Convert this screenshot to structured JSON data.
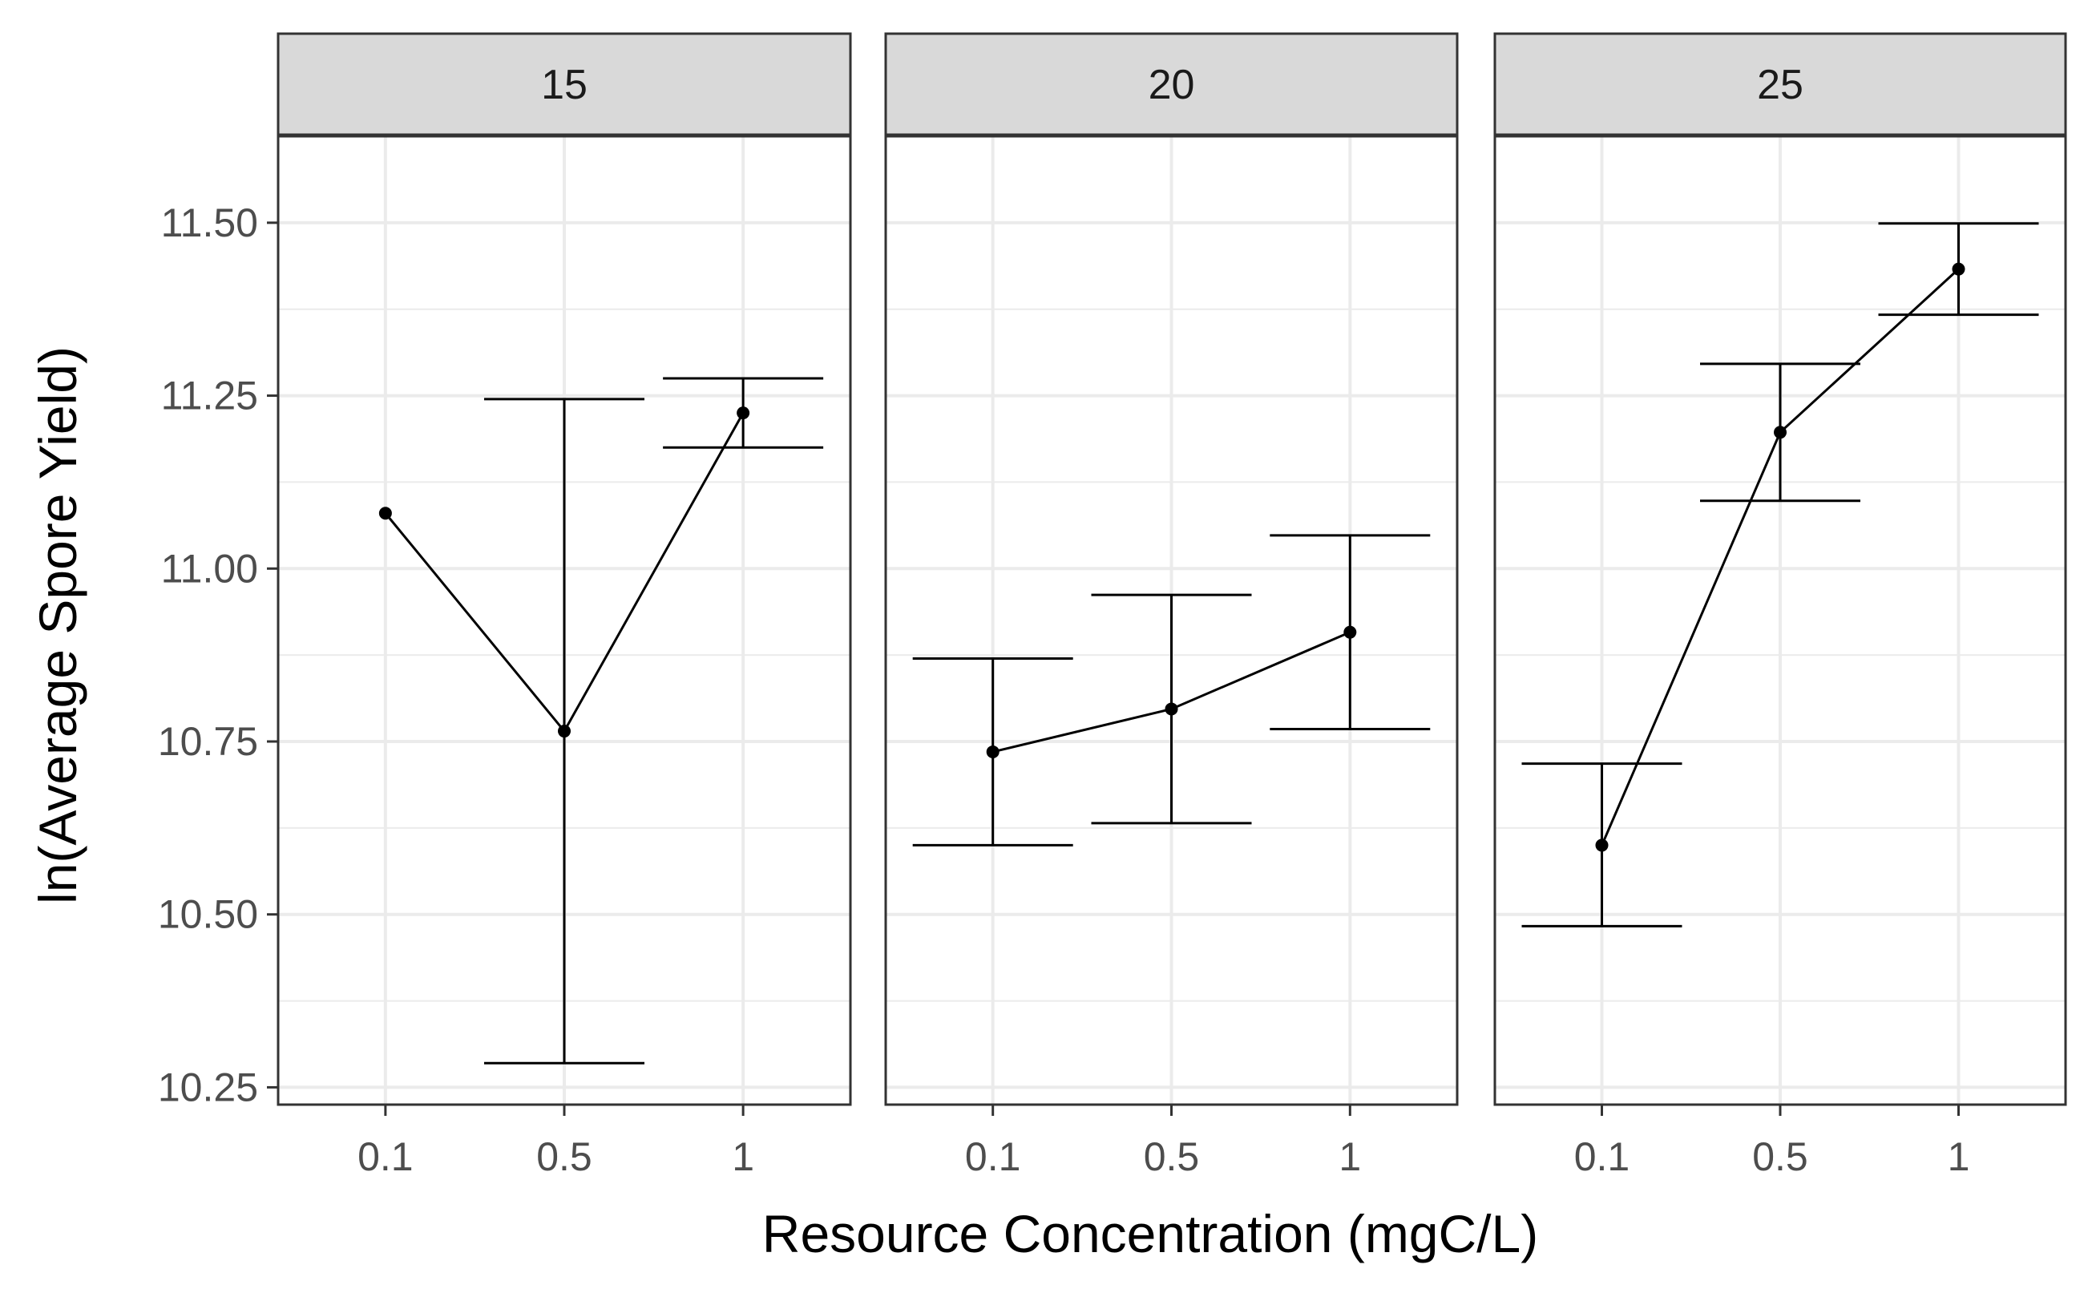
{
  "chart_data": {
    "type": "line",
    "facet_variable_values": [
      "15",
      "20",
      "25"
    ],
    "xlabel": "Resource Concentration (mgC/L)",
    "ylabel": "ln(Average Spore Yield)",
    "categories": [
      "0.1",
      "0.5",
      "1"
    ],
    "ylim": [
      10.225,
      11.625
    ],
    "yticks": [
      "10.25",
      "10.50",
      "10.75",
      "11.00",
      "11.25",
      "11.50"
    ],
    "grid": true,
    "error_bars": true,
    "colors": {
      "line": "#000000",
      "panel_border": "#333333",
      "strip_fill": "#d9d9d9",
      "grid": "#ebebeb"
    },
    "facets": [
      {
        "label": "15",
        "points": [
          {
            "x": "0.1",
            "y": 11.08,
            "ymin": null,
            "ymax": null
          },
          {
            "x": "0.5",
            "y": 10.765,
            "ymin": 10.285,
            "ymax": 11.245
          },
          {
            "x": "1",
            "y": 11.225,
            "ymin": 11.175,
            "ymax": 11.275
          }
        ]
      },
      {
        "label": "20",
        "points": [
          {
            "x": "0.1",
            "y": 10.735,
            "ymin": 10.6,
            "ymax": 10.87
          },
          {
            "x": "0.5",
            "y": 10.797,
            "ymin": 10.632,
            "ymax": 10.962
          },
          {
            "x": "1",
            "y": 10.908,
            "ymin": 10.768,
            "ymax": 11.048
          }
        ]
      },
      {
        "label": "25",
        "points": [
          {
            "x": "0.1",
            "y": 10.6,
            "ymin": 10.483,
            "ymax": 10.718
          },
          {
            "x": "0.5",
            "y": 11.197,
            "ymin": 11.098,
            "ymax": 11.296
          },
          {
            "x": "1",
            "y": 11.433,
            "ymin": 11.367,
            "ymax": 11.499
          }
        ]
      }
    ]
  }
}
